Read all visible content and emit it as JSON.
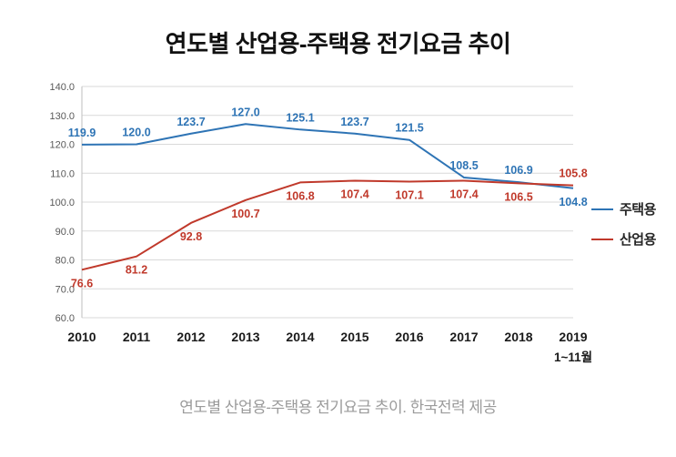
{
  "page": {
    "title": "연도별 산업용-주택용 전기요금 추이",
    "caption": "연도별 산업용-주택용 전기요금 추이. 한국전력 제공"
  },
  "chart_data": {
    "type": "line",
    "title": "연도별 산업용-주택용 전기요금 추이",
    "categories": [
      "2010",
      "2011",
      "2012",
      "2013",
      "2014",
      "2015",
      "2016",
      "2017",
      "2018",
      "2019"
    ],
    "x_sub_label": "1~11월",
    "series": [
      {
        "name": "주택용",
        "color": "#2e74b5",
        "values": [
          119.9,
          120.0,
          123.7,
          127.0,
          125.1,
          123.7,
          121.5,
          108.5,
          106.9,
          104.8
        ]
      },
      {
        "name": "산업용",
        "color": "#c0392b",
        "values": [
          76.6,
          81.2,
          92.8,
          100.7,
          106.8,
          107.4,
          107.1,
          107.4,
          106.5,
          105.8
        ]
      }
    ],
    "ylim": [
      60.0,
      140.0
    ],
    "y_tick_step": 10,
    "grid": true,
    "legend_position": "right",
    "data_labels": true
  }
}
